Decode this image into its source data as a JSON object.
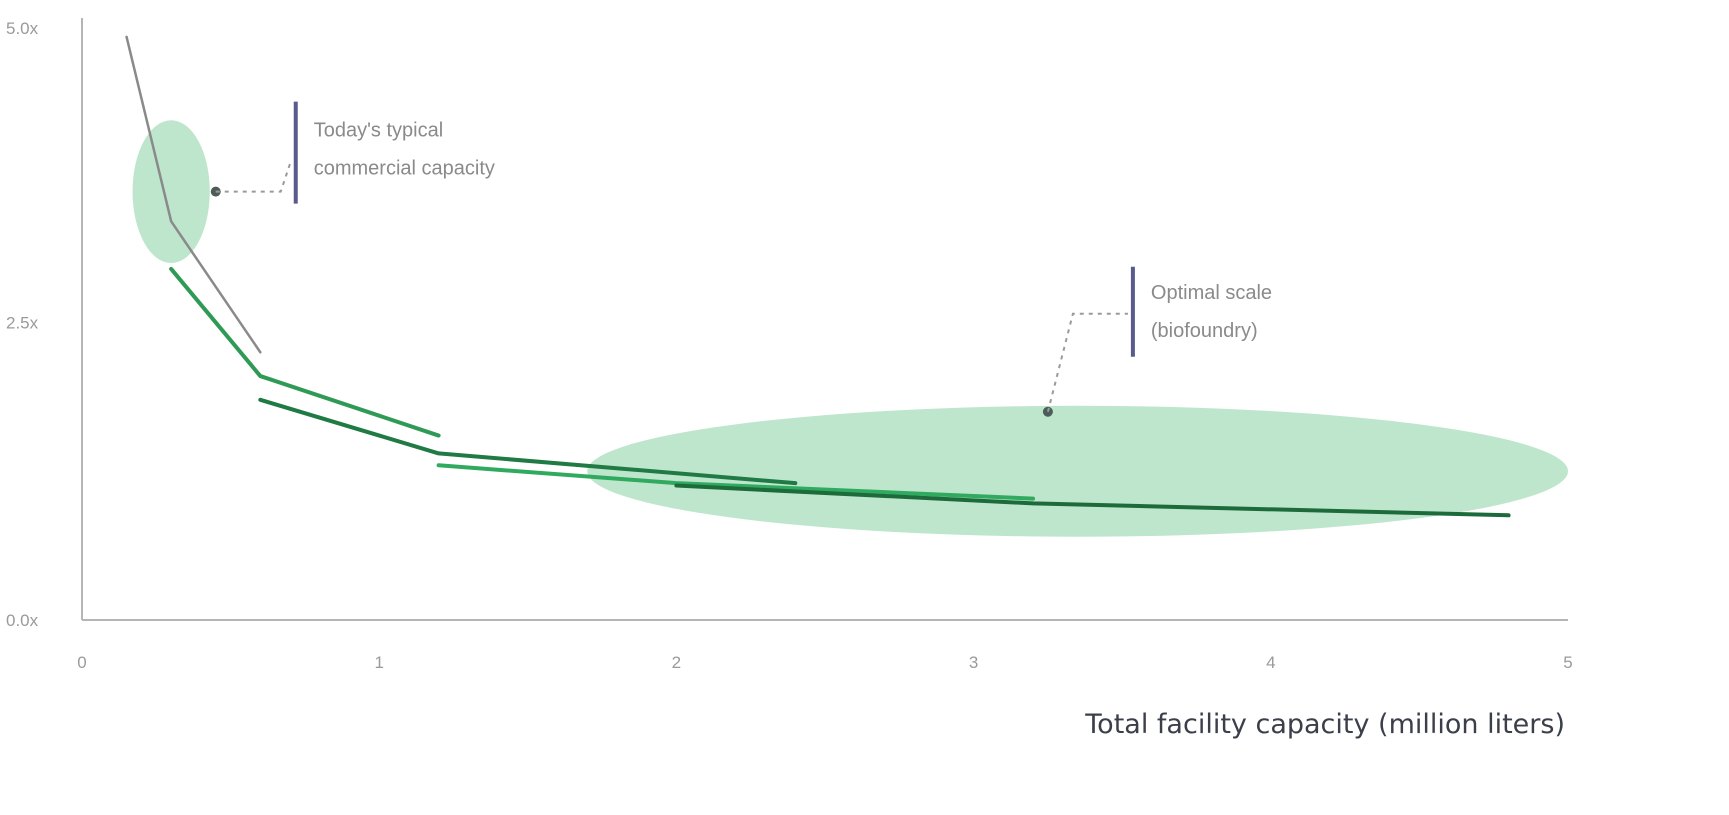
{
  "chart_data": {
    "type": "line",
    "title": "",
    "xlabel": "Total facility capacity (million liters)",
    "ylabel": "",
    "xlim": [
      0,
      5
    ],
    "ylim": [
      0,
      5
    ],
    "x_ticks": [
      "0",
      "1",
      "2",
      "3",
      "4",
      "5"
    ],
    "y_ticks": [
      "0.0x",
      "2.5x",
      "5.0x"
    ],
    "series": [
      {
        "color": "#8a8a8a",
        "points": [
          [
            0.15,
            4.9
          ],
          [
            0.3,
            3.35
          ],
          [
            0.6,
            2.25
          ]
        ]
      },
      {
        "color": "#2f9a55",
        "points": [
          [
            0.3,
            2.95
          ],
          [
            0.6,
            2.05
          ],
          [
            1.2,
            1.55
          ]
        ]
      },
      {
        "color": "#1f7a44",
        "points": [
          [
            0.6,
            1.85
          ],
          [
            1.2,
            1.4
          ],
          [
            2.4,
            1.15
          ]
        ]
      },
      {
        "color": "#2faa5f",
        "points": [
          [
            1.2,
            1.3
          ],
          [
            2.0,
            1.15
          ],
          [
            3.2,
            1.02
          ]
        ]
      },
      {
        "color": "#1d6b3b",
        "points": [
          [
            2.0,
            1.13
          ],
          [
            3.2,
            0.98
          ],
          [
            4.8,
            0.88
          ]
        ]
      }
    ],
    "shaded_regions": [
      {
        "center": [
          0.3,
          3.6
        ],
        "radius_x": 0.13,
        "radius_y": 0.6,
        "color": "#b7e3c7"
      },
      {
        "center": [
          3.35,
          1.25
        ],
        "radius_x": 1.65,
        "radius_y": 0.55,
        "color": "#b7e3c7"
      }
    ],
    "annotations": [
      {
        "text_lines": [
          "Today's typical",
          "commercial capacity"
        ],
        "marker": [
          0.45,
          3.6
        ],
        "bar_color": "#5a5a8c"
      },
      {
        "text_lines": [
          "Optimal scale",
          "(biofoundry)"
        ],
        "marker": [
          3.25,
          1.75
        ],
        "bar_color": "#5a5a8c"
      }
    ]
  }
}
